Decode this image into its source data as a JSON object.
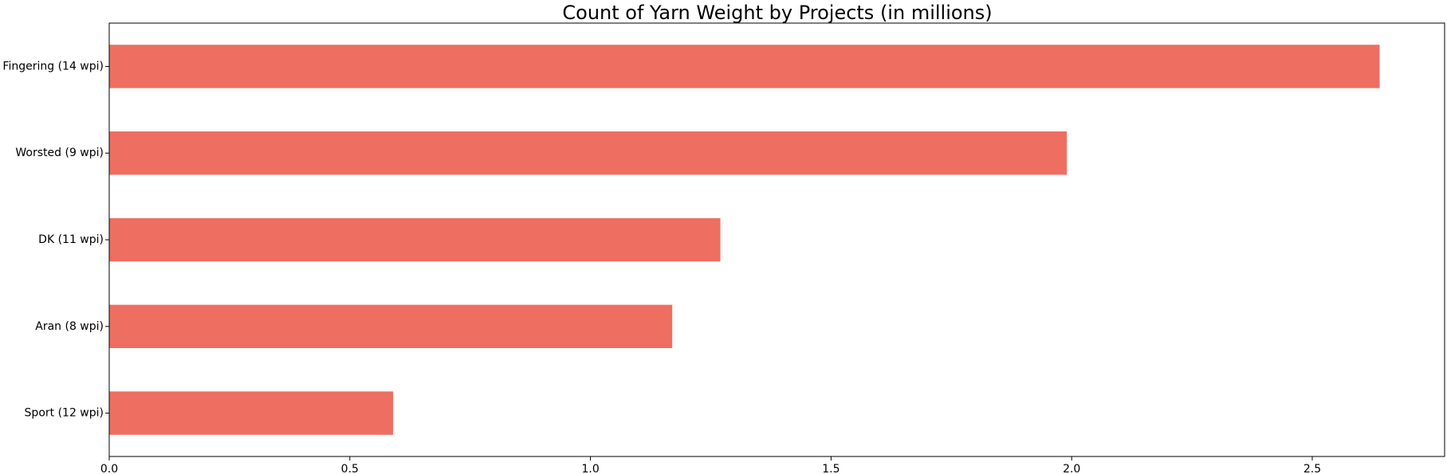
{
  "chart_data": {
    "type": "bar",
    "orientation": "horizontal",
    "title": "Count of Yarn Weight by Projects (in millions)",
    "xlabel": "",
    "ylabel": "",
    "categories": [
      "Fingering (14 wpi)",
      "Worsted (9 wpi)",
      "DK (11 wpi)",
      "Aran (8 wpi)",
      "Sport (12 wpi)"
    ],
    "values": [
      2.64,
      1.99,
      1.27,
      1.17,
      0.59
    ],
    "xlim": [
      0,
      2.775
    ],
    "xticks": [
      0.0,
      0.5,
      1.0,
      1.5,
      2.0,
      2.5
    ],
    "xtick_labels": [
      "0.0",
      "0.5",
      "1.0",
      "1.5",
      "2.0",
      "2.5"
    ],
    "grid": false,
    "legend": "none",
    "bar_color": "#ee6e62"
  }
}
